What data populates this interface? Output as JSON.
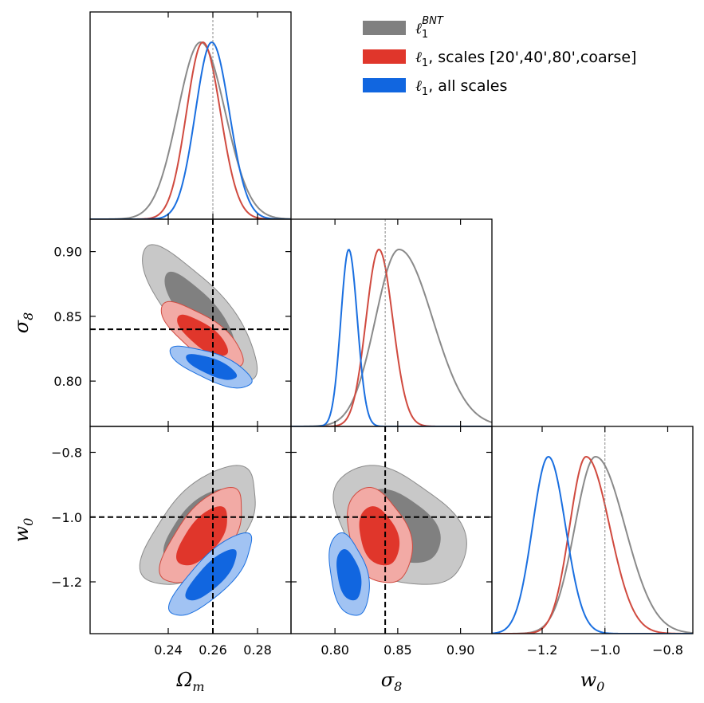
{
  "chart_data": {
    "type": "corner",
    "parameters": [
      {
        "id": "om",
        "label": "Ωm",
        "range": [
          0.205,
          0.295
        ],
        "ticks": [
          0.24,
          0.26,
          0.28
        ],
        "tick_labels": [
          "0.24",
          "0.26",
          "0.28"
        ],
        "truth": 0.26
      },
      {
        "id": "s8",
        "label": "σ8",
        "range": [
          0.765,
          0.925
        ],
        "ticks": [
          0.8,
          0.85,
          0.9
        ],
        "tick_labels": [
          "0.80",
          "0.85",
          "0.90"
        ],
        "truth": 0.84
      },
      {
        "id": "w0",
        "label": "w0",
        "range": [
          -1.36,
          -0.72
        ],
        "ticks": [
          -1.2,
          -1.0,
          -0.8
        ],
        "tick_labels": [
          "−1.2",
          "−1.0",
          "−0.8"
        ],
        "truth": -1.0
      }
    ],
    "legend": {
      "placement": "top-right",
      "entries": [
        {
          "label_main": "ℓ",
          "sub": "1",
          "sup": "BNT",
          "rest": ""
        },
        {
          "label_main": "ℓ",
          "sub": "1",
          "sup": "",
          "rest": ", scales [20',40',80',coarse]"
        },
        {
          "label_main": "ℓ",
          "sub": "1",
          "sup": "",
          "rest": ", all scales"
        }
      ]
    },
    "series": [
      {
        "color_inner": "#808080",
        "color_outer": "#c8c8c8",
        "edge": "#8a8a8a",
        "mean": {
          "om": 0.2545,
          "s8": 0.851,
          "w0": -1.03
        },
        "sigma": {
          "om": 0.0105,
          "s8": 0.0215,
          "w0": 0.075
        },
        "corr": {
          "om_s8": -0.8,
          "om_w0": 0.6,
          "s8_w0": -0.4
        }
      },
      {
        "color_inner": "#e0362b",
        "color_outer": "#f2aaa5",
        "edge": "#d04a3f",
        "mean": {
          "om": 0.2555,
          "s8": 0.835,
          "w0": -1.06
        },
        "sigma": {
          "om": 0.0075,
          "s8": 0.0105,
          "w0": 0.06
        },
        "corr": {
          "om_s8": -0.75,
          "om_w0": 0.65,
          "s8_w0": -0.3
        }
      },
      {
        "color_inner": "#1166e0",
        "color_outer": "#a1c3f3",
        "edge": "#1a6fe0",
        "mean": {
          "om": 0.2595,
          "s8": 0.811,
          "w0": -1.18
        },
        "sigma": {
          "om": 0.0075,
          "s8": 0.0065,
          "w0": 0.052
        },
        "corr": {
          "om_s8": -0.72,
          "om_w0": 0.8,
          "s8_w0": -0.35
        }
      }
    ]
  }
}
